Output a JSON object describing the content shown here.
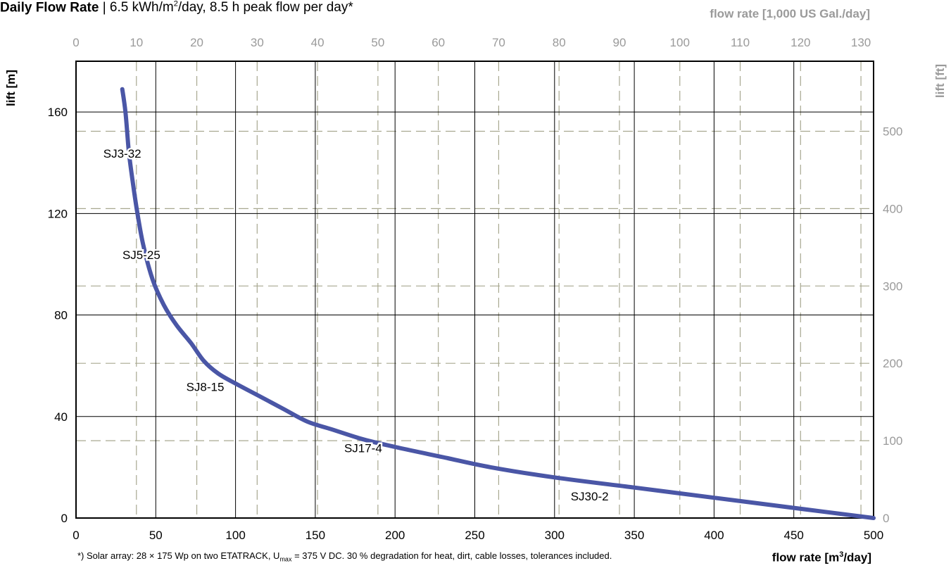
{
  "title": {
    "bold": "Daily Flow Rate",
    "separator": " | ",
    "rest_pre": "6.5 kWh/m",
    "rest_sup": "2",
    "rest_post": "/day, 8.5 h peak flow per day*"
  },
  "top_axis_title": "flow rate [1,000 US Gal./day]",
  "left_axis_title": "lift [m]",
  "right_axis_title": "lift [ft]",
  "bottom_axis_title": {
    "pre": "flow rate [m",
    "sup": "3",
    "post": "/day]"
  },
  "footnote": {
    "pre": "*) Solar array: 28 × 175 Wp on two ETATRACK, U",
    "sub": "max",
    "post": " = 375 V DC. 30 % degradation for heat, dirt, cable losses, tolerances included."
  },
  "colors": {
    "curve": "#4a56a6",
    "grid_primary": "#000000",
    "grid_secondary": "#a8a890",
    "secondary_text": "#9a9a9a"
  },
  "chart_data": {
    "type": "line",
    "x_axis": {
      "label": "flow rate [m³/day]",
      "range": [
        0,
        500
      ],
      "ticks": [
        0,
        50,
        100,
        150,
        200,
        250,
        300,
        350,
        400,
        450,
        500
      ]
    },
    "y_axis": {
      "label": "lift [m]",
      "range": [
        0,
        180
      ],
      "ticks": [
        0,
        40,
        80,
        120,
        160
      ]
    },
    "x2_axis": {
      "label": "flow rate [1,000 US Gal./day]",
      "range": [
        0,
        132.09
      ],
      "ticks": [
        0,
        10,
        20,
        30,
        40,
        50,
        60,
        70,
        80,
        90,
        100,
        110,
        120,
        130
      ]
    },
    "y2_axis": {
      "label": "lift [ft]",
      "range": [
        0,
        590.55
      ],
      "ticks": [
        0,
        100,
        200,
        300,
        400,
        500
      ]
    },
    "grid": true,
    "series": [
      {
        "x": [
          29,
          31,
          33,
          35,
          38,
          42,
          48,
          55,
          63,
          72,
          80,
          89,
          100,
          115,
          130,
          145,
          160,
          180,
          200,
          230,
          260,
          300,
          350,
          400,
          450,
          500
        ],
        "y": [
          169,
          160,
          145,
          135,
          122,
          108,
          94,
          84,
          76,
          69,
          62,
          57,
          53,
          48,
          43,
          38,
          35,
          31,
          28,
          24,
          20,
          16,
          12,
          8,
          4,
          0
        ]
      }
    ],
    "annotations": [
      {
        "text": "SJ3-32",
        "x": 29,
        "y": 142
      },
      {
        "text": "SJ5-25",
        "x": 41,
        "y": 102
      },
      {
        "text": "SJ8-15",
        "x": 81,
        "y": 50
      },
      {
        "text": "SJ17-4",
        "x": 180,
        "y": 26
      },
      {
        "text": "SJ30-2",
        "x": 322,
        "y": 7
      }
    ]
  }
}
